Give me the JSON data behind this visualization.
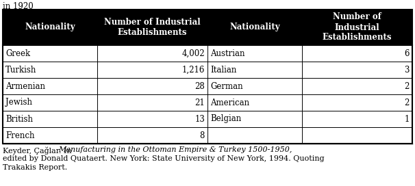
{
  "title_above": "in 1920",
  "col_headers": [
    "Nationality",
    "Number of Industrial\nEstablishments",
    "Nationality",
    "Number of\nIndustrial\nEstablishments"
  ],
  "rows": [
    [
      "Greek",
      "4,002",
      "Austrian",
      "6"
    ],
    [
      "Turkish",
      "1,216",
      "Italian",
      "3"
    ],
    [
      "Armenian",
      "28",
      "German",
      "2"
    ],
    [
      "Jewish",
      "21",
      "American",
      "2"
    ],
    [
      "British",
      "13",
      "Belgian",
      "1"
    ],
    [
      "French",
      "8",
      "",
      ""
    ]
  ],
  "caption_parts": [
    {
      "text": "Keyder, Çağlar. In ",
      "italic": false
    },
    {
      "text": "Manufacturing in the Ottoman Empire & Turkey 1500-1950,",
      "italic": true
    },
    {
      "text": "\nedited by Donald Quataert. New York: State University of New York, 1994. Quoting\nTrakakis Report.",
      "italic": false
    }
  ],
  "header_bg": "#000000",
  "header_fg": "#ffffff",
  "cell_bg": "#ffffff",
  "cell_fg": "#000000",
  "font_size": 8.5,
  "caption_font_size": 8.0,
  "title_font_size": 8.5
}
